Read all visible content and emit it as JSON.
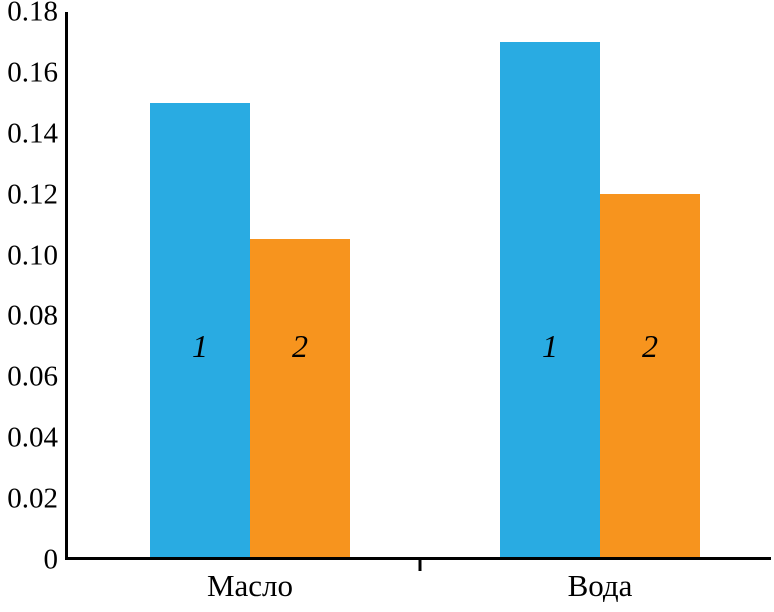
{
  "chart_data": {
    "type": "bar",
    "categories": [
      "Масло",
      "Вода"
    ],
    "series": [
      {
        "name": "1",
        "color": "#29abe2",
        "values": [
          0.15,
          0.17
        ]
      },
      {
        "name": "2",
        "color": "#f7941e",
        "values": [
          0.105,
          0.12
        ]
      }
    ],
    "title": "",
    "xlabel": "",
    "ylabel": "",
    "ylim": [
      0,
      0.18
    ],
    "yticks": [
      "0",
      "0.02",
      "0.04",
      "0.06",
      "0.08",
      "0.10",
      "0.12",
      "0.14",
      "0.16",
      "0.18"
    ],
    "grid": false,
    "legend": "none",
    "bar_labels_inside": true
  }
}
